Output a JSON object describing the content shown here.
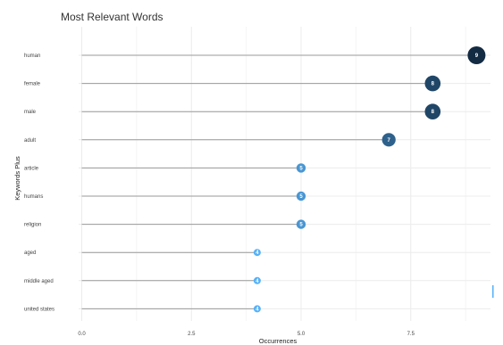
{
  "chart_data": {
    "type": "lollipop",
    "title": "Most Relevant Words",
    "xlabel": "Occurrences",
    "ylabel": "Keywords Plus",
    "xlim": [
      0,
      10
    ],
    "xticks": [
      "0.0",
      "2.5",
      "5.0",
      "7.5"
    ],
    "xtick_values": [
      0,
      2.5,
      5,
      7.5
    ],
    "grid": true,
    "categories": [
      "human",
      "female",
      "male",
      "adult",
      "article",
      "humans",
      "religion",
      "aged",
      "middle aged",
      "united states"
    ],
    "values": [
      9,
      8,
      8,
      7,
      5,
      5,
      5,
      4,
      4,
      4
    ],
    "value_labels": [
      "9",
      "8",
      "8",
      "7",
      "5",
      "5",
      "5",
      "4",
      "4",
      "4"
    ],
    "color_scale": {
      "low": "#56b1f7",
      "high": "#132b43"
    }
  }
}
